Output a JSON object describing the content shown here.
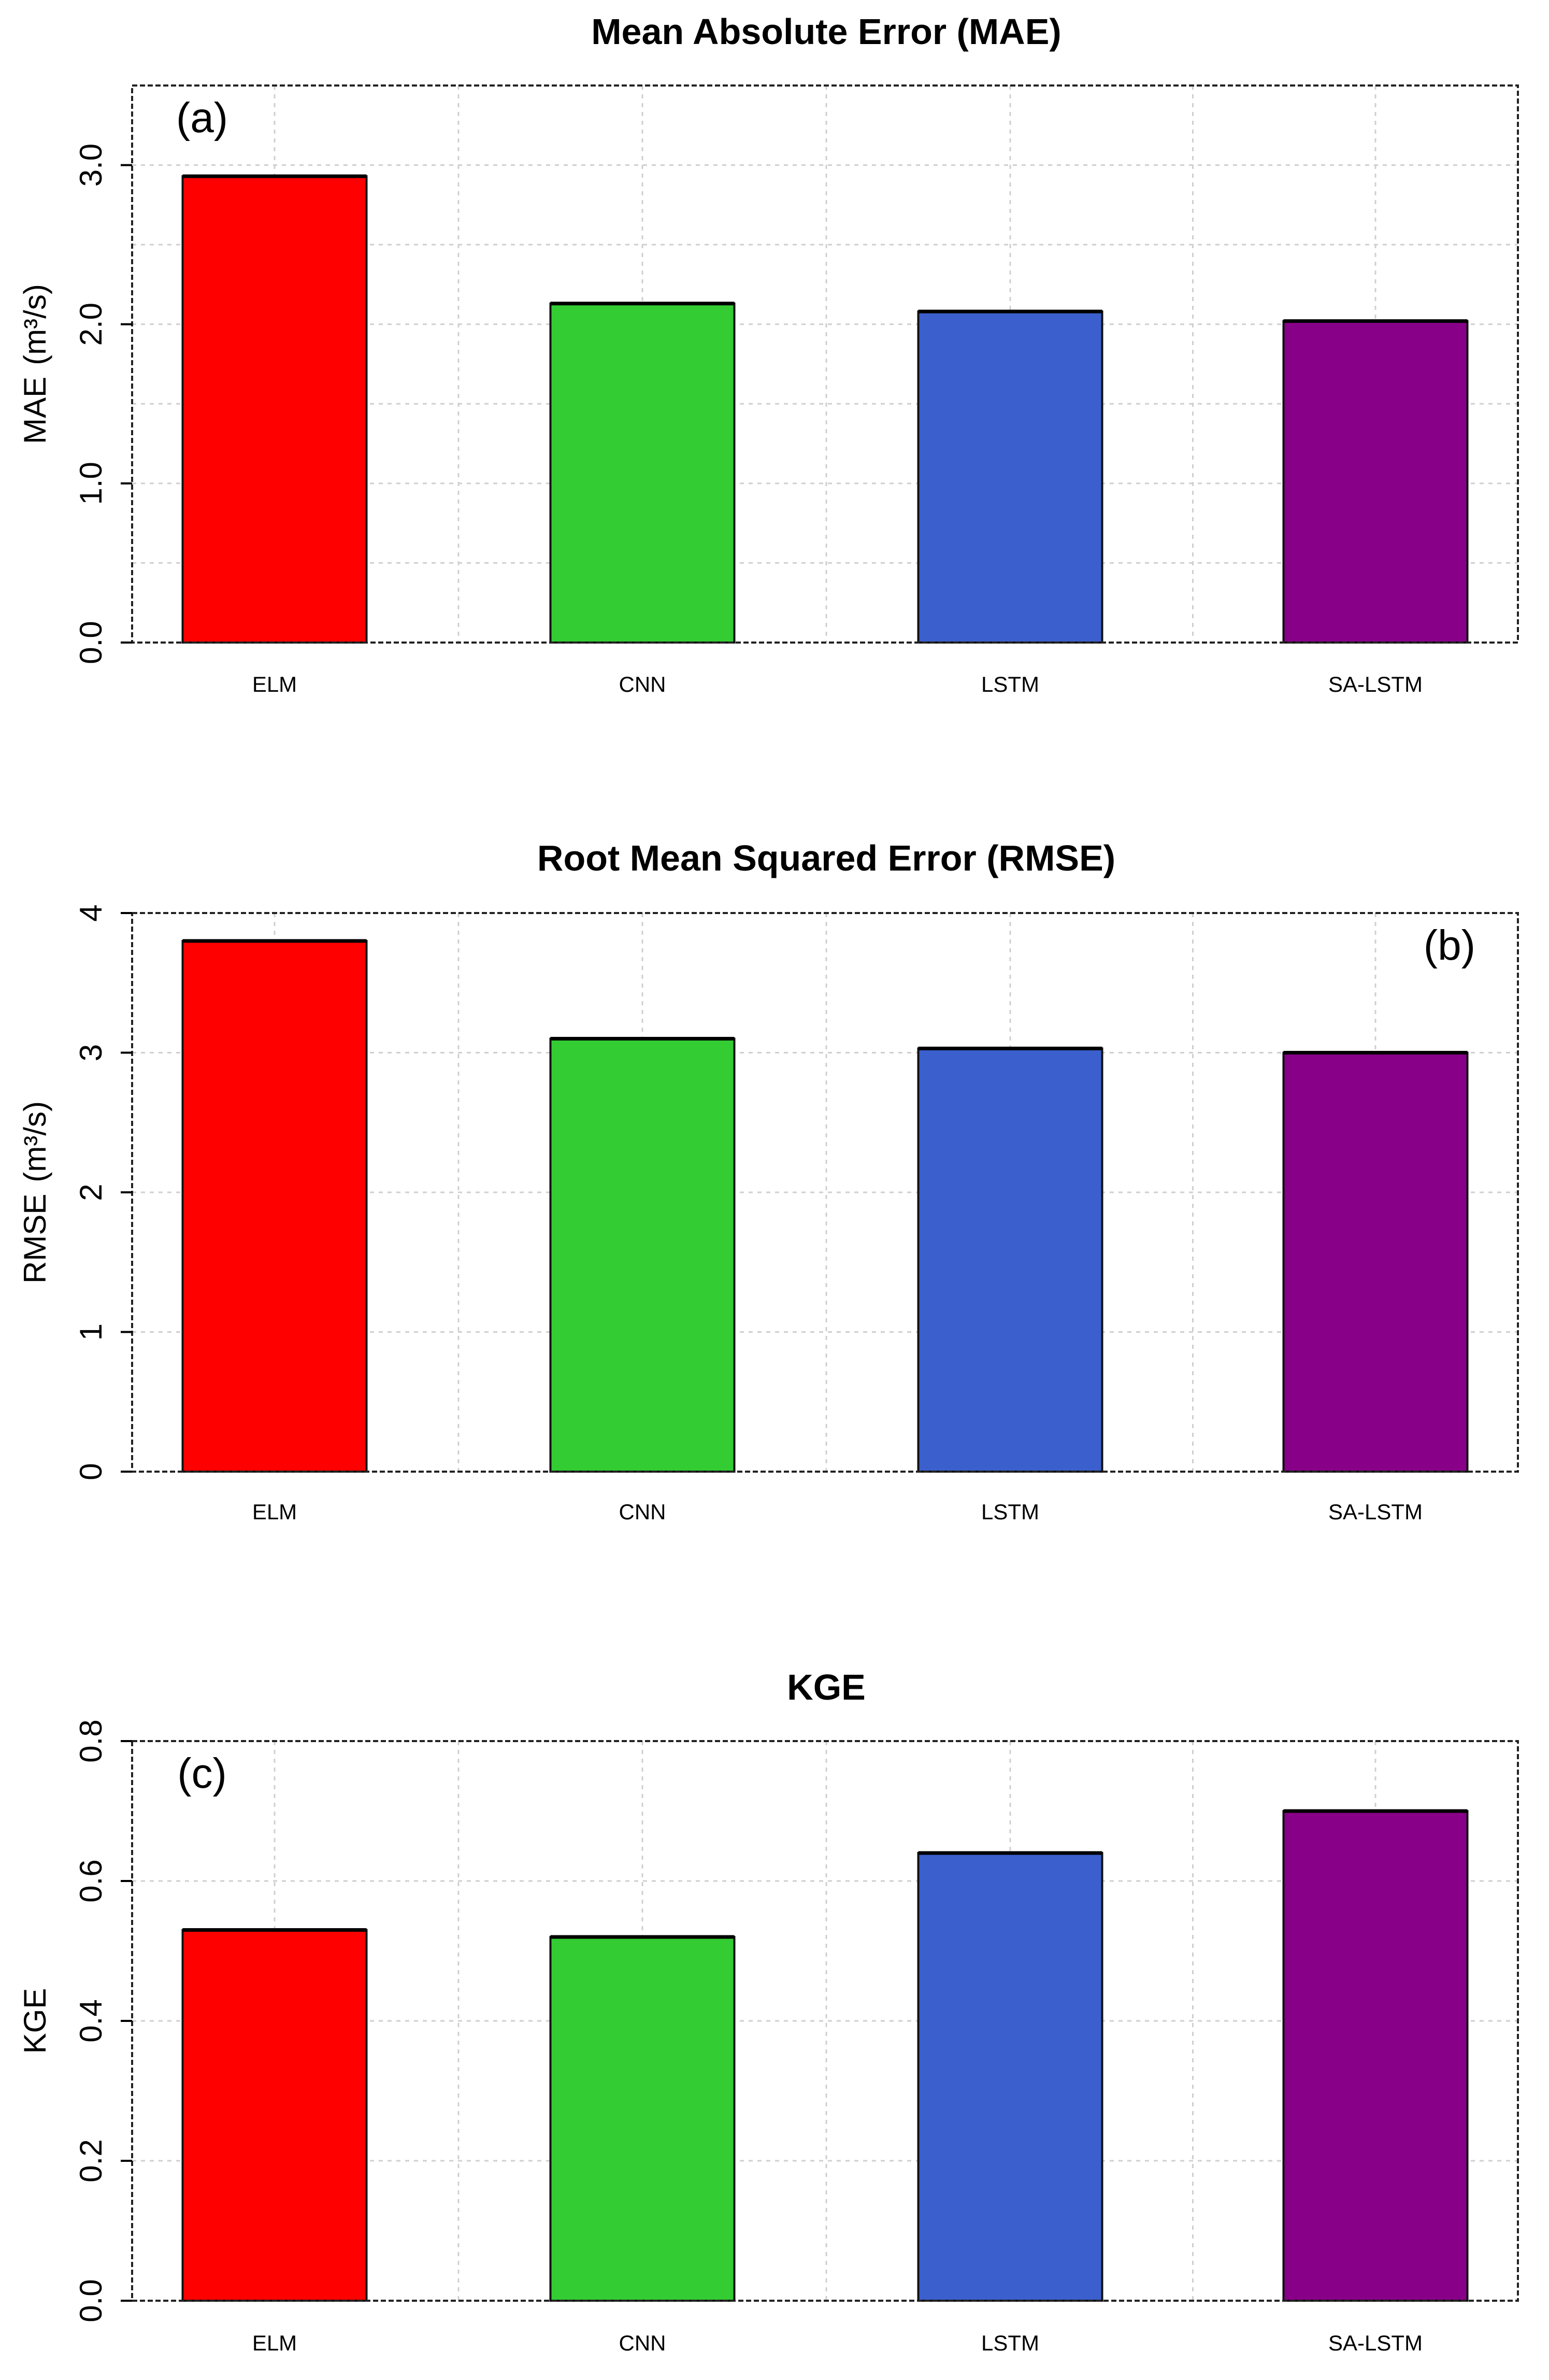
{
  "chart_data": [
    {
      "type": "bar",
      "title": "Mean Absolute Error (MAE)",
      "panel_label": "(a)",
      "ylabel_prefix": "MAE",
      "ylabel_unit": "(m³/s)",
      "categories": [
        "ELM",
        "CNN",
        "LSTM",
        "SA-LSTM"
      ],
      "values": [
        2.93,
        2.13,
        2.08,
        2.02
      ],
      "ylim": [
        0,
        3.5
      ],
      "yticks": [
        "0.0",
        "1.0",
        "2.0",
        "3.0"
      ],
      "ytick_values": [
        0,
        1,
        2,
        3
      ],
      "grid_values": [
        0.5,
        1,
        1.5,
        2,
        2.5,
        3
      ],
      "grid": true,
      "label_position": "top-left"
    },
    {
      "type": "bar",
      "title": "Root Mean Squared Error (RMSE)",
      "panel_label": "(b)",
      "ylabel_prefix": "RMSE",
      "ylabel_unit": "(m³/s)",
      "categories": [
        "ELM",
        "CNN",
        "LSTM",
        "SA-LSTM"
      ],
      "values": [
        3.8,
        3.1,
        3.03,
        3.0
      ],
      "ylim": [
        0,
        4
      ],
      "yticks": [
        "0",
        "1",
        "2",
        "3",
        "4"
      ],
      "ytick_values": [
        0,
        1,
        2,
        3,
        4
      ],
      "grid_values": [
        1,
        2,
        3
      ],
      "grid": true,
      "label_position": "top-right"
    },
    {
      "type": "bar",
      "title": "KGE",
      "panel_label": "(c)",
      "ylabel_prefix": "KGE",
      "ylabel_unit": "",
      "categories": [
        "ELM",
        "CNN",
        "LSTM",
        "SA-LSTM"
      ],
      "values": [
        0.53,
        0.52,
        0.64,
        0.7
      ],
      "ylim": [
        0,
        0.8
      ],
      "yticks": [
        "0.0",
        "0.2",
        "0.4",
        "0.6",
        "0.8"
      ],
      "ytick_values": [
        0,
        0.2,
        0.4,
        0.6,
        0.8
      ],
      "grid_values": [
        0.2,
        0.4,
        0.6
      ],
      "grid": true,
      "label_position": "top-left"
    }
  ],
  "colors": [
    "#ff0000",
    "#33cc33",
    "#3b5fcc",
    "#880088"
  ]
}
